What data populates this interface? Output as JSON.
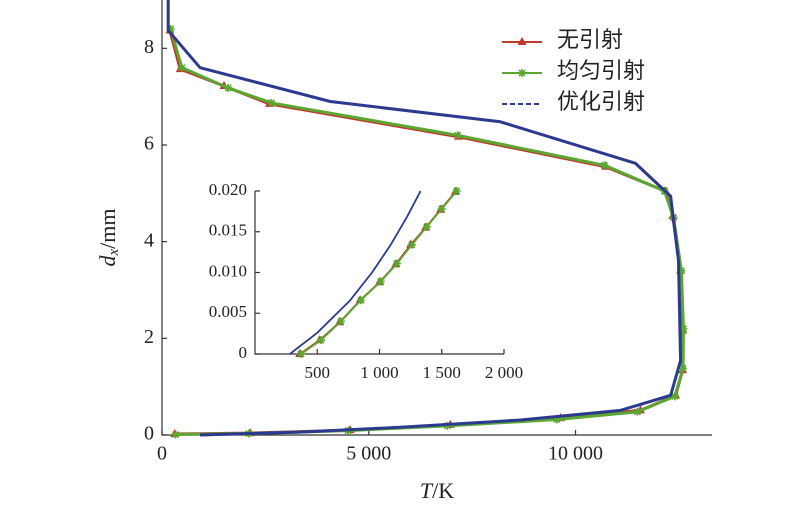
{
  "chart_data": [
    {
      "type": "line",
      "xlabel": [
        "T",
        "/K"
      ],
      "ylabel": [
        "d",
        "x",
        "/mm"
      ],
      "xlim": [
        0,
        13300
      ],
      "ylim": [
        0,
        9
      ],
      "xticks": [
        0,
        {
          "value": 5000,
          "label": "5 000"
        },
        {
          "value": 10000,
          "label": "10 000"
        }
      ],
      "yticks": [
        0,
        2,
        4,
        6,
        8
      ],
      "legend": "upper right",
      "series": [
        {
          "name": "无引射",
          "color": "#c0392b",
          "marker": "triangle",
          "dash": false,
          "x": [
            190,
            440,
            1500,
            2600,
            7170,
            10730,
            12180,
            12350,
            12540,
            12590,
            12590,
            12420,
            11570,
            9640,
            6970,
            4550,
            2130,
            310
          ],
          "values": [
            8.37,
            7.57,
            7.22,
            6.85,
            6.17,
            5.55,
            5.04,
            4.53,
            3.4,
            2.16,
            1.34,
            0.82,
            0.51,
            0.35,
            0.21,
            0.1,
            0.04,
            0.02
          ]
        },
        {
          "name": "均匀引射",
          "color": "#5aa832",
          "marker": "star",
          "dash": false,
          "x": [
            210,
            480,
            1600,
            2650,
            7150,
            10700,
            12150,
            12370,
            12560,
            12610,
            12600,
            12400,
            11500,
            9550,
            6900,
            4500,
            2100,
            330
          ],
          "values": [
            8.4,
            7.6,
            7.18,
            6.87,
            6.2,
            5.58,
            5.05,
            4.5,
            3.4,
            2.2,
            1.38,
            0.8,
            0.48,
            0.32,
            0.19,
            0.09,
            0.03,
            0.01
          ]
        },
        {
          "name": "优化引射",
          "color": "#2b3a8f",
          "marker": "none",
          "dash": true,
          "x": [
            150,
            150,
            920,
            4070,
            8180,
            11450,
            12300,
            12490,
            12540,
            12300,
            11090,
            8670,
            5760,
            3340,
            920
          ],
          "values": [
            9,
            8.37,
            7.6,
            6.9,
            6.48,
            5.62,
            4.94,
            3.6,
            1.54,
            0.82,
            0.51,
            0.31,
            0.16,
            0.06,
            0
          ]
        }
      ]
    },
    {
      "type": "line",
      "xlim": [
        0,
        2000
      ],
      "ylim": [
        0,
        0.02
      ],
      "xticks": [
        500,
        {
          "value": 1000,
          "label": "1 000"
        },
        {
          "value": 1500,
          "label": "1 500"
        },
        {
          "value": 2000,
          "label": "2 000"
        }
      ],
      "yticks": [
        0,
        0.005,
        {
          "value": 0.01,
          "label": "0.010"
        },
        0.015,
        {
          "value": 0.02,
          "label": "0.020"
        }
      ],
      "series": [
        {
          "color": "#c0392b",
          "marker": "triangle",
          "dash": false,
          "x": [
            360,
            520,
            680,
            845,
            1000,
            1130,
            1250,
            1370,
            1490,
            1610
          ],
          "values": [
            0,
            0.0017,
            0.0039,
            0.0066,
            0.0088,
            0.011,
            0.0134,
            0.0155,
            0.0177,
            0.0199
          ]
        },
        {
          "color": "#5aa832",
          "marker": "star",
          "dash": false,
          "x": [
            370,
            530,
            690,
            850,
            1010,
            1140,
            1260,
            1380,
            1500,
            1620
          ],
          "values": [
            0,
            0.0017,
            0.004,
            0.0066,
            0.0089,
            0.0111,
            0.0134,
            0.0156,
            0.0178,
            0.02
          ]
        },
        {
          "color": "#2b3a8f",
          "marker": "none",
          "dash": false,
          "x": [
            280,
            500,
            765,
            940,
            1090,
            1220,
            1330
          ],
          "values": [
            0,
            0.0026,
            0.0066,
            0.01,
            0.0134,
            0.0168,
            0.02
          ]
        }
      ]
    }
  ]
}
